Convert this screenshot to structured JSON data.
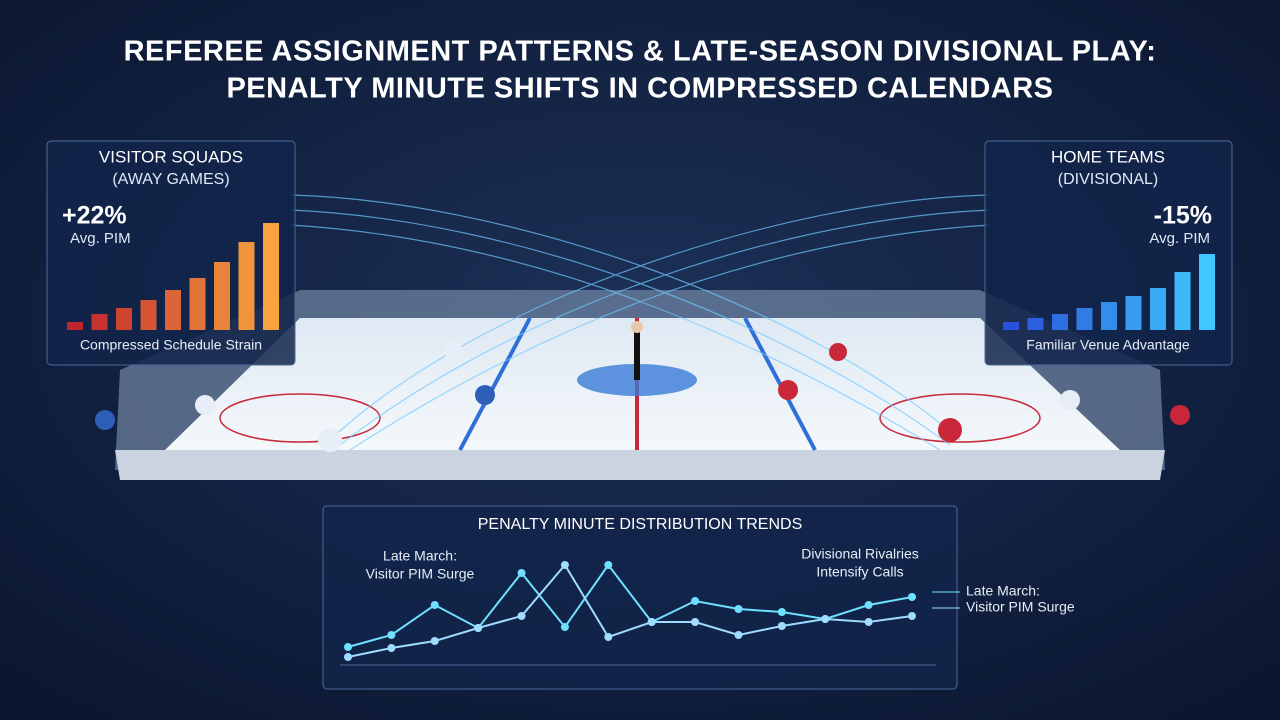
{
  "title": [
    "REFEREE ASSIGNMENT PATTERNS & LATE-SEASON DIVISIONAL PLAY:",
    "PENALTY MINUTE SHIFTS IN COMPRESSED CALENDARS"
  ],
  "left_panel": {
    "heading": "VISITOR SQUADS",
    "subheading": "(AWAY GAMES)",
    "stat": "+22%",
    "stat_label": "Avg. PIM",
    "caption": "Compressed Schedule Strain",
    "bars": [
      8,
      16,
      22,
      30,
      40,
      52,
      68,
      88,
      107
    ],
    "color_from": "#c0242c",
    "color_to": "#f7a440"
  },
  "right_panel": {
    "heading": "HOME TEAMS",
    "subheading": "(DIVISIONAL)",
    "stat": "-15%",
    "stat_label": "Avg. PIM",
    "caption": "Familiar Venue Advantage",
    "bars": [
      8,
      12,
      16,
      22,
      28,
      34,
      42,
      58,
      76
    ],
    "color_from": "#2a4fd8",
    "color_to": "#3ec8ff"
  },
  "trend_chart": {
    "type": "line",
    "title": "PENALTY MINUTE DISTRIBUTION TRENDS",
    "ylim": [
      0,
      110
    ],
    "series": [
      {
        "color": "#6fe0ff",
        "values": [
          18,
          30,
          60,
          37,
          92,
          38,
          100,
          43,
          64,
          56,
          53,
          46,
          60,
          68
        ]
      },
      {
        "color": "#9fdcff",
        "values": [
          8,
          17,
          24,
          37,
          49,
          100,
          28,
          43,
          43,
          30,
          39,
          46,
          43,
          49
        ]
      }
    ],
    "annotations": [
      [
        "Late March:",
        "Visitor PIM Surge"
      ],
      [
        "Divisional Rivalries",
        "Intensify Calls"
      ]
    ],
    "legend": [
      "Late March:",
      "Visitor PIM Surge"
    ]
  }
}
